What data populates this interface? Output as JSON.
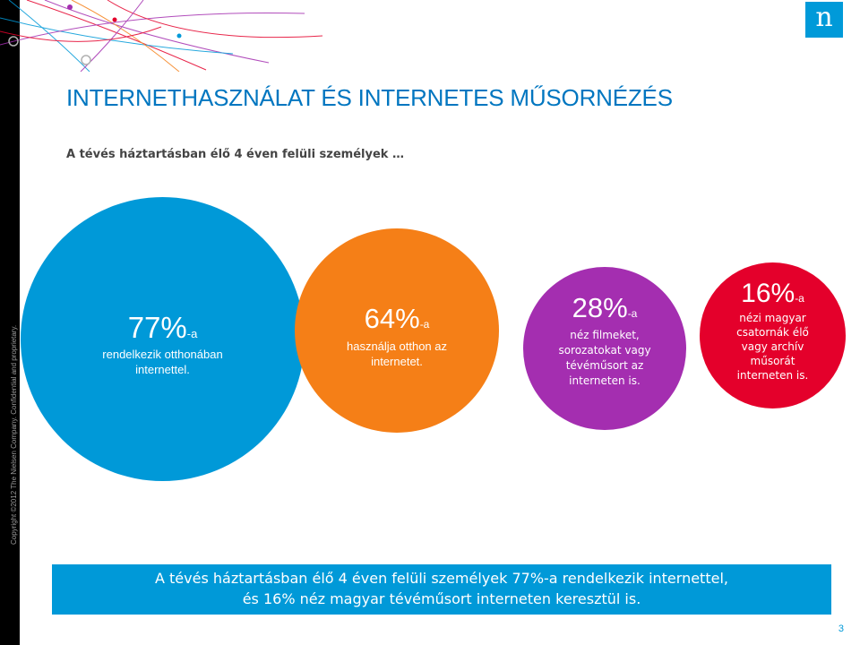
{
  "slide": {
    "title": "INTERNETHASZNÁLAT ÉS INTERNETES MŰSORNÉZÉS",
    "subtitle": "A tévés háztartásban élő 4 éven felüli személyek …",
    "page_number": "3",
    "copyright": "Copyright ©2012 The Nielsen Company. Confidential and proprietary.",
    "logo_letter": "n"
  },
  "bubbles": [
    {
      "pct": "77%",
      "suffix": "-a",
      "desc_lines": [
        "rendelkezik otthonában",
        "internettel."
      ],
      "color": "#0099d8"
    },
    {
      "pct": "64%",
      "suffix": "-a",
      "desc_lines": [
        "használja otthon az",
        "internetet."
      ],
      "color": "#f57f17"
    },
    {
      "pct": "28%",
      "suffix": "-a",
      "desc_lines": [
        "néz filmeket,",
        "sorozatokat vagy",
        "tévéműsort az",
        "interneten is."
      ],
      "color": "#a42eb0"
    },
    {
      "pct": "16%",
      "suffix": "-a",
      "desc_lines": [
        "nézi magyar",
        "csatornák élő",
        "vagy archív",
        "műsorát",
        "interneten is."
      ],
      "color": "#e4002b"
    }
  ],
  "banner": {
    "line1": "A tévés háztartásban élő 4 éven felüli személyek 77%-a rendelkezik internettel,",
    "line2": "és 16% néz magyar tévéműsort interneten keresztül is.",
    "color": "#0099d8"
  },
  "colors": {
    "accent": "#0076c0",
    "sidebar": "#000000"
  }
}
